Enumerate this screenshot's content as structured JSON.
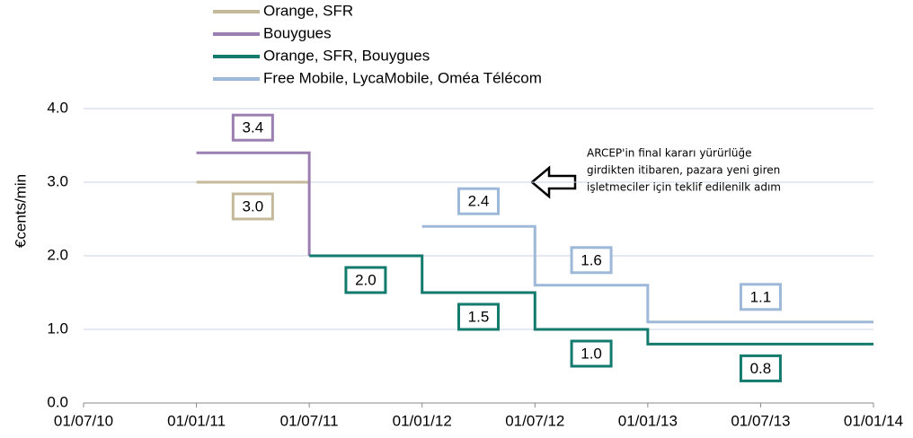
{
  "chart_data": {
    "type": "step",
    "ylabel": "€cents/min",
    "categories": [
      "01/07/10",
      "01/01/11",
      "01/07/11",
      "01/01/12",
      "01/07/12",
      "01/01/13",
      "01/07/13",
      "01/01/14"
    ],
    "ylim": [
      0,
      4
    ],
    "yticks": [
      {
        "value": 0,
        "label": "0.0"
      },
      {
        "value": 1,
        "label": "1.0"
      },
      {
        "value": 2,
        "label": "2.0"
      },
      {
        "value": 3,
        "label": "3.0"
      },
      {
        "value": 4,
        "label": "4.0"
      }
    ],
    "grid": true,
    "legend": "top-left",
    "series": [
      {
        "name": "Orange, SFR",
        "color": "#c4b99a",
        "label_side": "below",
        "x": [
          "01/01/11",
          "01/07/11"
        ],
        "values": [
          3.0,
          3.0
        ],
        "value_labels": [
          "3.0",
          null
        ]
      },
      {
        "name": "Bouygues",
        "color": "#9b7fb0",
        "label_side": "above",
        "x": [
          "01/01/11",
          "01/07/11"
        ],
        "values": [
          3.4,
          2.0
        ],
        "value_labels": [
          "3.4",
          null
        ]
      },
      {
        "name": "Orange, SFR, Bouygues",
        "color": "#137a6e",
        "label_side": "below",
        "x": [
          "01/07/11",
          "01/01/12",
          "01/07/12",
          "01/01/13",
          "01/01/14"
        ],
        "values": [
          2.0,
          1.5,
          1.0,
          0.8,
          0.8
        ],
        "value_labels": [
          "2.0",
          "1.5",
          "1.0",
          "0.8",
          null
        ]
      },
      {
        "name": "Free Mobile, LycaMobile, Oméa Télécom",
        "color": "#9db8d8",
        "label_side": "above",
        "x": [
          "01/01/12",
          "01/07/12",
          "01/01/13",
          "01/01/14"
        ],
        "values": [
          2.4,
          1.6,
          1.1,
          1.1
        ],
        "value_labels": [
          "2.4",
          "1.6",
          "1.1",
          null
        ]
      }
    ],
    "annotation": [
      "ARCEP'in final kararı yürürlüğe",
      "girdikten itibaren, pazara yeni giren",
      "işletmeciler  için teklif edilenilk adım"
    ]
  }
}
